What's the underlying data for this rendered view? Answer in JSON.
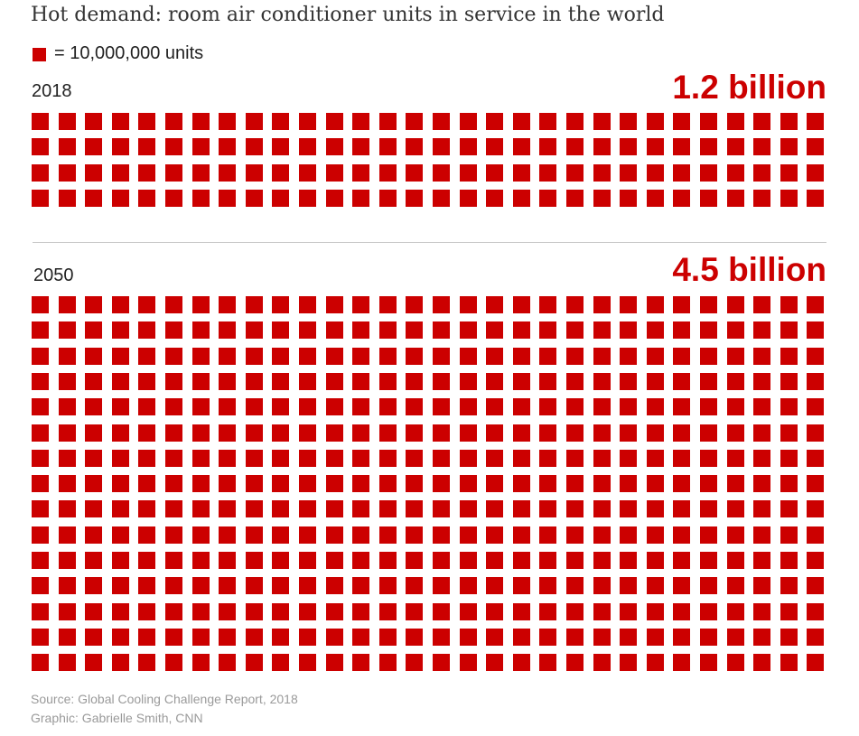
{
  "title": "Hot demand: room air conditioner units in service in the world",
  "legend": {
    "label": "= 10,000,000 units",
    "color": "#cc0000",
    "units_per_square": 10000000
  },
  "colors": {
    "accent": "#cc0000",
    "divider": "#c8c8c8",
    "source_text": "#9a9a9a"
  },
  "chart_data": {
    "type": "bar",
    "title": "Hot demand: room air conditioner units in service in the world",
    "categories": [
      "2018",
      "2050"
    ],
    "units_per_square": 10000000,
    "values": [
      1.2,
      4.5
    ],
    "value_unit": "billion",
    "value_labels": [
      "1.2 billion",
      "4.5 billion"
    ],
    "squares_shown": [
      120,
      450
    ],
    "grid_columns": 30,
    "legend": "= 10,000,000 units",
    "groups": [
      {
        "year": "2018",
        "total_label": "1.2 billion",
        "value": 1.2,
        "squares": 120,
        "columns": 30,
        "rows": 4
      },
      {
        "year": "2050",
        "total_label": "4.5 billion",
        "value": 4.5,
        "squares": 450,
        "columns": 30,
        "rows": 15
      }
    ]
  },
  "footer": {
    "source": "Source: Global Cooling Challenge Report, 2018",
    "credit": "Graphic: Gabrielle Smith, CNN"
  }
}
